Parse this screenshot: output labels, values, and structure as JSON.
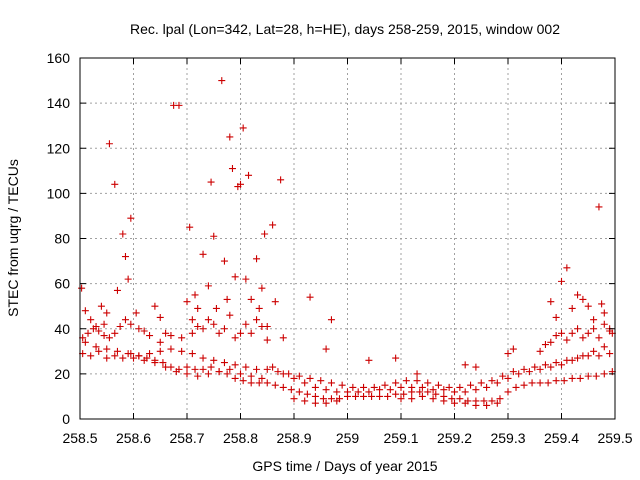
{
  "chart_data": {
    "type": "scatter",
    "title": "Rec. lpal (Lon=342, Lat=28, h=HE), days 258-259, 2015, window 002",
    "xlabel": "GPS time / Days of year 2015",
    "ylabel": "STEC from uqrg / TECUs",
    "xlim": [
      258.5,
      259.5
    ],
    "ylim": [
      0,
      160
    ],
    "xticks": [
      258.5,
      258.6,
      258.7,
      258.8,
      258.9,
      259.0,
      259.1,
      259.2,
      259.3,
      259.4,
      259.5
    ],
    "xtick_labels": [
      "258.5",
      "258.6",
      "258.7",
      "258.8",
      "258.9",
      "259",
      "259.1",
      "259.2",
      "259.3",
      "259.4",
      "259.5"
    ],
    "yticks": [
      0,
      20,
      40,
      60,
      80,
      100,
      120,
      140,
      160
    ],
    "ytick_labels": [
      "0",
      "20",
      "40",
      "60",
      "80",
      "100",
      "120",
      "140",
      "160"
    ],
    "grid": true,
    "marker": "plus",
    "color": "#cc0000",
    "series": [
      {
        "points": [
          [
            258.503,
            58
          ],
          [
            258.51,
            48
          ],
          [
            258.52,
            44
          ],
          [
            258.53,
            41
          ],
          [
            258.54,
            50
          ],
          [
            258.545,
            37
          ],
          [
            258.55,
            47
          ],
          [
            258.555,
            122
          ],
          [
            258.565,
            104
          ],
          [
            258.57,
            57
          ],
          [
            258.58,
            82
          ],
          [
            258.585,
            72
          ],
          [
            258.59,
            62
          ],
          [
            258.595,
            89
          ],
          [
            258.605,
            47
          ],
          [
            258.62,
            39
          ],
          [
            258.64,
            50
          ],
          [
            258.65,
            45
          ],
          [
            258.66,
            38
          ],
          [
            258.675,
            139
          ],
          [
            258.685,
            139
          ],
          [
            258.7,
            52
          ],
          [
            258.705,
            85
          ],
          [
            258.71,
            44
          ],
          [
            258.715,
            55
          ],
          [
            258.72,
            49
          ],
          [
            258.73,
            73
          ],
          [
            258.74,
            59
          ],
          [
            258.745,
            105
          ],
          [
            258.75,
            81
          ],
          [
            258.755,
            49
          ],
          [
            258.765,
            150
          ],
          [
            258.77,
            70
          ],
          [
            258.775,
            53
          ],
          [
            258.78,
            125
          ],
          [
            258.785,
            111
          ],
          [
            258.79,
            63
          ],
          [
            258.795,
            103
          ],
          [
            258.8,
            104
          ],
          [
            258.805,
            129
          ],
          [
            258.81,
            62
          ],
          [
            258.815,
            108
          ],
          [
            258.82,
            53
          ],
          [
            258.83,
            71
          ],
          [
            258.835,
            49
          ],
          [
            258.84,
            58
          ],
          [
            258.845,
            82
          ],
          [
            258.85,
            41
          ],
          [
            258.86,
            86
          ],
          [
            258.865,
            52
          ],
          [
            258.875,
            106
          ],
          [
            258.88,
            36
          ],
          [
            258.93,
            54
          ],
          [
            258.96,
            31
          ],
          [
            258.97,
            44
          ],
          [
            259.04,
            26
          ],
          [
            259.09,
            27
          ],
          [
            259.13,
            20
          ],
          [
            259.22,
            24
          ],
          [
            259.24,
            23
          ],
          [
            259.3,
            29
          ],
          [
            259.31,
            31
          ],
          [
            259.38,
            52
          ],
          [
            259.39,
            45
          ],
          [
            259.4,
            61
          ],
          [
            259.41,
            67
          ],
          [
            259.42,
            49
          ],
          [
            259.43,
            55
          ],
          [
            259.44,
            53
          ],
          [
            259.45,
            50
          ],
          [
            259.46,
            44
          ],
          [
            259.47,
            94
          ],
          [
            259.475,
            51
          ],
          [
            259.48,
            47
          ],
          [
            259.49,
            40
          ],
          [
            259.495,
            38
          ],
          [
            258.505,
            36
          ],
          [
            258.515,
            38
          ],
          [
            258.525,
            40
          ],
          [
            258.535,
            39
          ],
          [
            258.545,
            42
          ],
          [
            258.555,
            36
          ],
          [
            258.565,
            38
          ],
          [
            258.575,
            41
          ],
          [
            258.585,
            44
          ],
          [
            258.595,
            42
          ],
          [
            258.61,
            40
          ],
          [
            258.63,
            37
          ],
          [
            258.65,
            34
          ],
          [
            258.67,
            37
          ],
          [
            258.69,
            36
          ],
          [
            258.71,
            38
          ],
          [
            258.72,
            41
          ],
          [
            258.73,
            40
          ],
          [
            258.74,
            44
          ],
          [
            258.75,
            42
          ],
          [
            258.76,
            38
          ],
          [
            258.77,
            40
          ],
          [
            258.78,
            46
          ],
          [
            258.79,
            36
          ],
          [
            258.8,
            38
          ],
          [
            258.81,
            42
          ],
          [
            258.82,
            38
          ],
          [
            258.83,
            44
          ],
          [
            258.84,
            41
          ],
          [
            258.85,
            35
          ],
          [
            259.36,
            30
          ],
          [
            259.37,
            33
          ],
          [
            259.38,
            34
          ],
          [
            259.39,
            37
          ],
          [
            259.4,
            38
          ],
          [
            259.41,
            35
          ],
          [
            259.42,
            38
          ],
          [
            259.43,
            40
          ],
          [
            259.44,
            36
          ],
          [
            259.45,
            38
          ],
          [
            259.46,
            40
          ],
          [
            259.47,
            36
          ],
          [
            259.48,
            42
          ],
          [
            259.49,
            39
          ],
          [
            258.505,
            29
          ],
          [
            258.52,
            28
          ],
          [
            258.535,
            30
          ],
          [
            258.55,
            27
          ],
          [
            258.565,
            28
          ],
          [
            258.58,
            27
          ],
          [
            258.595,
            29
          ],
          [
            258.61,
            28
          ],
          [
            258.625,
            27
          ],
          [
            258.64,
            26
          ],
          [
            258.655,
            25
          ],
          [
            258.67,
            23
          ],
          [
            258.685,
            22
          ],
          [
            258.7,
            23
          ],
          [
            258.715,
            22
          ],
          [
            258.73,
            22
          ],
          [
            258.745,
            23
          ],
          [
            258.76,
            21
          ],
          [
            258.775,
            20
          ],
          [
            258.79,
            18
          ],
          [
            258.805,
            17
          ],
          [
            258.82,
            16
          ],
          [
            258.835,
            16
          ],
          [
            258.85,
            16
          ],
          [
            258.865,
            15
          ],
          [
            258.88,
            14
          ],
          [
            258.895,
            13
          ],
          [
            258.91,
            12
          ],
          [
            258.925,
            11
          ],
          [
            258.94,
            10
          ],
          [
            258.955,
            9
          ],
          [
            258.97,
            9
          ],
          [
            258.985,
            9
          ],
          [
            259.0,
            10
          ],
          [
            259.015,
            10
          ],
          [
            259.03,
            10
          ],
          [
            259.045,
            10
          ],
          [
            259.06,
            10
          ],
          [
            259.075,
            10
          ],
          [
            259.09,
            11
          ],
          [
            259.105,
            11
          ],
          [
            259.12,
            12
          ],
          [
            259.135,
            12
          ],
          [
            259.15,
            12
          ],
          [
            259.165,
            11
          ],
          [
            259.18,
            10
          ],
          [
            259.195,
            9
          ],
          [
            259.21,
            9
          ],
          [
            259.225,
            8
          ],
          [
            259.24,
            8
          ],
          [
            259.255,
            8
          ],
          [
            259.27,
            8
          ],
          [
            259.285,
            9
          ],
          [
            259.3,
            12
          ],
          [
            259.315,
            14
          ],
          [
            259.33,
            15
          ],
          [
            259.345,
            16
          ],
          [
            259.36,
            16
          ],
          [
            259.375,
            16
          ],
          [
            259.39,
            17
          ],
          [
            259.405,
            17
          ],
          [
            259.42,
            18
          ],
          [
            259.435,
            18
          ],
          [
            259.45,
            19
          ],
          [
            259.465,
            19
          ],
          [
            259.48,
            20
          ],
          [
            259.495,
            21
          ],
          [
            258.51,
            34
          ],
          [
            258.53,
            32
          ],
          [
            258.55,
            31
          ],
          [
            258.57,
            30
          ],
          [
            258.59,
            29
          ],
          [
            258.61,
            28
          ],
          [
            258.63,
            29
          ],
          [
            258.65,
            30
          ],
          [
            258.67,
            31
          ],
          [
            258.69,
            30
          ],
          [
            258.71,
            29
          ],
          [
            258.73,
            27
          ],
          [
            258.75,
            26
          ],
          [
            258.77,
            25
          ],
          [
            258.79,
            24
          ],
          [
            258.81,
            23
          ],
          [
            258.83,
            22
          ],
          [
            258.85,
            22
          ],
          [
            258.87,
            21
          ],
          [
            258.89,
            20
          ],
          [
            258.91,
            19
          ],
          [
            258.93,
            18
          ],
          [
            258.95,
            17
          ],
          [
            258.97,
            16
          ],
          [
            258.99,
            15
          ],
          [
            259.01,
            14
          ],
          [
            259.03,
            14
          ],
          [
            259.05,
            14
          ],
          [
            259.07,
            15
          ],
          [
            259.09,
            16
          ],
          [
            259.11,
            17
          ],
          [
            259.13,
            17
          ],
          [
            259.15,
            16
          ],
          [
            259.17,
            15
          ],
          [
            259.19,
            14
          ],
          [
            259.21,
            14
          ],
          [
            259.23,
            15
          ],
          [
            259.25,
            16
          ],
          [
            259.27,
            17
          ],
          [
            259.29,
            19
          ],
          [
            259.31,
            21
          ],
          [
            259.33,
            22
          ],
          [
            259.35,
            23
          ],
          [
            259.37,
            24
          ],
          [
            259.39,
            25
          ],
          [
            259.41,
            26
          ],
          [
            259.43,
            27
          ],
          [
            259.45,
            28
          ],
          [
            259.47,
            28
          ],
          [
            259.49,
            29
          ],
          [
            258.86,
            23
          ],
          [
            258.88,
            20
          ],
          [
            258.9,
            18
          ],
          [
            258.92,
            16
          ],
          [
            258.94,
            14
          ],
          [
            258.96,
            13
          ],
          [
            258.98,
            12
          ],
          [
            259.0,
            12
          ],
          [
            259.02,
            12
          ],
          [
            259.04,
            12
          ],
          [
            259.06,
            13
          ],
          [
            259.08,
            13
          ],
          [
            259.1,
            14
          ],
          [
            259.12,
            14
          ],
          [
            259.14,
            14
          ],
          [
            259.16,
            13
          ],
          [
            259.18,
            13
          ],
          [
            259.2,
            12
          ],
          [
            259.22,
            12
          ],
          [
            259.24,
            13
          ],
          [
            259.26,
            14
          ],
          [
            259.28,
            16
          ],
          [
            259.3,
            18
          ],
          [
            259.32,
            20
          ],
          [
            259.34,
            21
          ],
          [
            259.36,
            22
          ],
          [
            259.38,
            23
          ],
          [
            259.4,
            24
          ],
          [
            259.42,
            26
          ],
          [
            259.44,
            28
          ],
          [
            259.46,
            30
          ],
          [
            259.48,
            32
          ],
          [
            258.6,
            27
          ],
          [
            258.62,
            26
          ],
          [
            258.64,
            25
          ],
          [
            258.66,
            23
          ],
          [
            258.68,
            21
          ],
          [
            258.7,
            20
          ],
          [
            258.72,
            19
          ],
          [
            258.74,
            20
          ],
          [
            258.76,
            21
          ],
          [
            258.78,
            22
          ],
          [
            258.8,
            20
          ],
          [
            258.82,
            19
          ],
          [
            258.84,
            18
          ],
          [
            258.9,
            9
          ],
          [
            258.92,
            8
          ],
          [
            258.94,
            7
          ],
          [
            258.96,
            7
          ],
          [
            258.98,
            8
          ],
          [
            259.1,
            9
          ],
          [
            259.12,
            9
          ],
          [
            259.14,
            10
          ],
          [
            259.16,
            9
          ],
          [
            259.18,
            8
          ],
          [
            259.2,
            7
          ],
          [
            259.22,
            7
          ],
          [
            259.24,
            6
          ],
          [
            259.26,
            6
          ],
          [
            259.28,
            7
          ]
        ]
      }
    ]
  }
}
